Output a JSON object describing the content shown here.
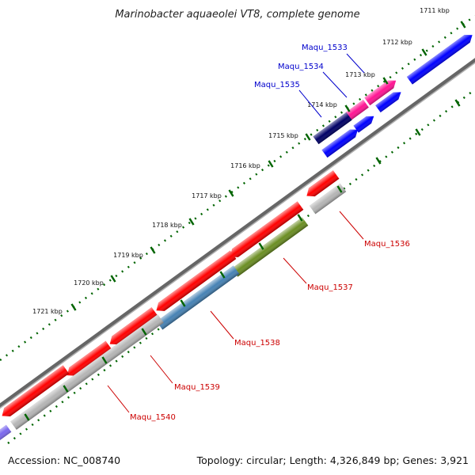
{
  "title": "Marinobacter aquaeolei VT8, complete genome",
  "footer": {
    "accession": "Accession: NC_008740",
    "summary": "Topology: circular; Length: 4,326,849 bp; Genes: 3,921"
  },
  "colors": {
    "red": "#ff0000",
    "blue": "#0000ff",
    "navy": "#000066",
    "pink": "#ff1493",
    "gray": "#b5b5b5",
    "olive": "#6b8e23",
    "steelblue": "#4682b4",
    "purple": "#7b68ee",
    "tick_green": "#006400",
    "backbone": "#808080",
    "label_blue": "#0000cc",
    "label_red": "#cc0000"
  },
  "ticks": [
    "1711 kbp",
    "1712 kbp",
    "1713 kbp",
    "1714 kbp",
    "1715 kbp",
    "1716 kbp",
    "1717 kbp",
    "1718 kbp",
    "1719 kbp",
    "1720 kbp",
    "1721 kbp"
  ],
  "gene_labels_forward": [
    "Maqu_1533",
    "Maqu_1534",
    "Maqu_1535"
  ],
  "gene_labels_reverse": [
    "Maqu_1536",
    "Maqu_1537",
    "Maqu_1538",
    "Maqu_1539",
    "Maqu_1540"
  ]
}
